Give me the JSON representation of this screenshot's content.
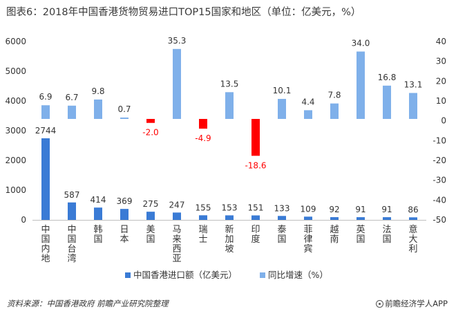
{
  "title": "图表6：2018年中国香港货物贸易进口TOP15国家和地区（单位：亿美元，%）",
  "source": "资料来源：中国香港政府 前瞻产业研究院整理",
  "brand": "前瞻经济学人APP",
  "colors": {
    "import": "#3a7bd5",
    "growth_pos": "#7fb0ea",
    "growth_neg": "#ff0000",
    "axis": "#bfbfbf"
  },
  "chart_data": {
    "type": "bar",
    "categories": [
      "中国内地",
      "中国台湾",
      "韩国",
      "日本",
      "美国",
      "马来西亚",
      "瑞士",
      "新加坡",
      "印度",
      "泰国",
      "菲律宾",
      "越南",
      "英国",
      "法国",
      "意大利"
    ],
    "series": [
      {
        "name": "中国香港进口额（亿美元）",
        "axis": "left",
        "values": [
          2744,
          587,
          414,
          369,
          275,
          247,
          155,
          153,
          151,
          133,
          109,
          92,
          91,
          91,
          86
        ]
      },
      {
        "name": "同比增速（%）",
        "axis": "right",
        "values": [
          6.9,
          6.7,
          9.8,
          0.7,
          -2.0,
          35.3,
          -4.9,
          13.5,
          -18.6,
          10.1,
          4.4,
          7.8,
          34.0,
          16.8,
          13.1
        ]
      }
    ],
    "left_ticks": [
      "0",
      "1000",
      "2000",
      "3000",
      "4000",
      "5000",
      "6000"
    ],
    "right_ticks": [
      "40",
      "30",
      "20",
      "10",
      "0",
      "-10",
      "-20",
      "-30",
      "-40",
      "-50"
    ],
    "ylim_left": [
      0,
      6000
    ],
    "ylim_right": [
      -50,
      40
    ],
    "legend_position": "bottom",
    "grid": false
  }
}
